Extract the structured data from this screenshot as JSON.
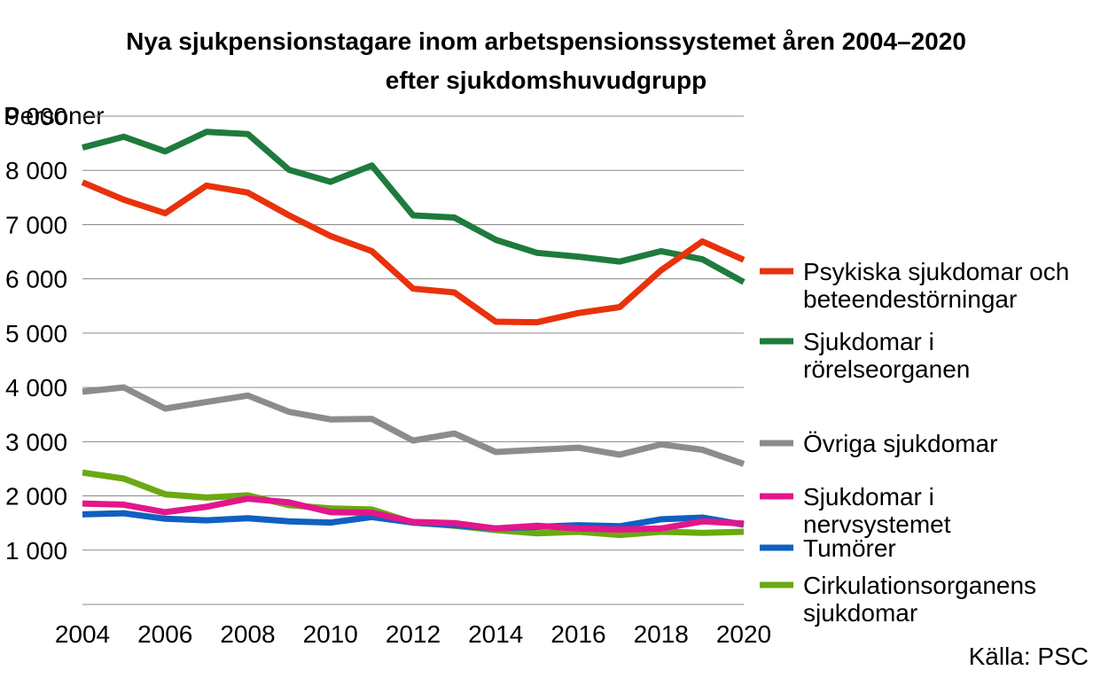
{
  "chart_data": {
    "type": "line",
    "title": [
      "Nya sjukpensionstagare inom arbetspensionssystemet åren 2004–2020",
      "efter sjukdomshuvudgrupp"
    ],
    "ylabel": "Personer",
    "xlabel": "",
    "ylim": [
      0,
      9000
    ],
    "yticks": [
      1000,
      2000,
      3000,
      4000,
      5000,
      6000,
      7000,
      8000,
      9000
    ],
    "ytick_labels": [
      "1 000",
      "2 000",
      "3 000",
      "4 000",
      "5 000",
      "6 000",
      "7 000",
      "8 000",
      "9 000"
    ],
    "x": [
      2004,
      2005,
      2006,
      2007,
      2008,
      2009,
      2010,
      2011,
      2012,
      2013,
      2014,
      2015,
      2016,
      2017,
      2018,
      2019,
      2020
    ],
    "xtick_labels": [
      "2004",
      "2006",
      "2008",
      "2010",
      "2012",
      "2014",
      "2016",
      "2018",
      "2020"
    ],
    "grid": "horizontal",
    "legend_position": "right",
    "source": "Källa: PSC",
    "series": [
      {
        "name": "Psykiska sjukdomar och beteendestörningar",
        "legend_lines": [
          "Psykiska sjukdomar och",
          "beteendestörningar"
        ],
        "color": "#e8320c",
        "values": [
          7780,
          7460,
          7210,
          7720,
          7590,
          7170,
          6790,
          6510,
          5820,
          5750,
          5210,
          5200,
          5370,
          5480,
          6160,
          6690,
          6350
        ]
      },
      {
        "name": "Sjukdomar i rörelseorganen",
        "legend_lines": [
          "Sjukdomar i",
          "rörelseorganen"
        ],
        "color": "#1e7b3c",
        "values": [
          8420,
          8620,
          8350,
          8710,
          8670,
          8010,
          7790,
          8090,
          7170,
          7130,
          6720,
          6480,
          6410,
          6320,
          6510,
          6360,
          5940
        ]
      },
      {
        "name": "Övriga sjukdomar",
        "legend_lines": [
          "Övriga sjukdomar"
        ],
        "color": "#8c8c8c",
        "values": [
          3920,
          4000,
          3610,
          3730,
          3850,
          3550,
          3410,
          3420,
          3020,
          3150,
          2810,
          2850,
          2890,
          2760,
          2950,
          2850,
          2590
        ]
      },
      {
        "name": "Sjukdomar i nervsystemet",
        "legend_lines": [
          "Sjukdomar i",
          "nervsystemet"
        ],
        "color": "#e3168c",
        "values": [
          1860,
          1840,
          1700,
          1800,
          1950,
          1880,
          1700,
          1690,
          1520,
          1500,
          1400,
          1450,
          1400,
          1380,
          1400,
          1530,
          1490
        ]
      },
      {
        "name": "Tumörer",
        "legend_lines": [
          "Tumörer"
        ],
        "color": "#1060c0",
        "values": [
          1660,
          1680,
          1580,
          1550,
          1590,
          1530,
          1510,
          1610,
          1510,
          1460,
          1400,
          1430,
          1460,
          1440,
          1570,
          1600,
          1470
        ]
      },
      {
        "name": "Cirkulationsorganens sjukdomar",
        "legend_lines": [
          "Cirkulationsorganens",
          "sjukdomar"
        ],
        "color": "#6aa912",
        "values": [
          2430,
          2320,
          2030,
          1970,
          2010,
          1830,
          1770,
          1750,
          1510,
          1450,
          1370,
          1310,
          1340,
          1280,
          1340,
          1320,
          1340
        ]
      }
    ]
  }
}
